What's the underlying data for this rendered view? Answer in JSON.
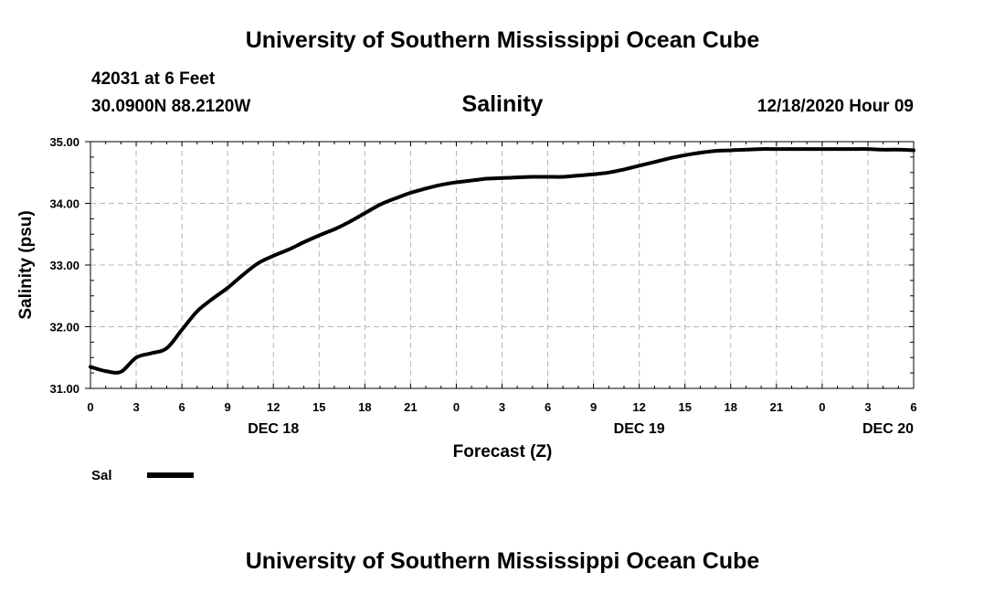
{
  "header": {
    "title": "University of Southern Mississippi Ocean Cube",
    "station": "42031 at 6 Feet",
    "coords": "30.0900N 88.2120W",
    "datetime": "12/18/2020 Hour 09"
  },
  "footer": {
    "title": "University of Southern Mississippi Ocean Cube"
  },
  "chart_data": {
    "type": "line",
    "title": "Salinity",
    "xlabel": "Forecast (Z)",
    "ylabel": "Salinity (psu)",
    "xlim": [
      0,
      54
    ],
    "ylim": [
      31.0,
      35.0
    ],
    "grid": true,
    "xticks": [
      0,
      3,
      6,
      9,
      12,
      15,
      18,
      21,
      24,
      27,
      30,
      33,
      36,
      39,
      42,
      45,
      48,
      51,
      54
    ],
    "xtick_labels": [
      "0",
      "3",
      "6",
      "9",
      "12",
      "15",
      "18",
      "21",
      "0",
      "3",
      "6",
      "9",
      "12",
      "15",
      "18",
      "21",
      "0",
      "3",
      "6"
    ],
    "yticks": [
      31.0,
      32.0,
      33.0,
      34.0,
      35.0
    ],
    "ytick_labels": [
      "31.00",
      "32.00",
      "33.00",
      "34.00",
      "35.00"
    ],
    "date_labels": [
      {
        "hour": 12,
        "label": "DEC 18"
      },
      {
        "hour": 36,
        "label": "DEC 19"
      },
      {
        "hour": 54,
        "label": "DEC 20"
      }
    ],
    "legend": [
      {
        "label": "Sal",
        "color": "#000000"
      }
    ],
    "series": [
      {
        "name": "Sal",
        "color": "#000000",
        "x": [
          0,
          1,
          2,
          3,
          4,
          5,
          6,
          7,
          8,
          9,
          10,
          11,
          12,
          13,
          14,
          15,
          16,
          17,
          18,
          19,
          20,
          21,
          22,
          23,
          24,
          25,
          26,
          27,
          28,
          29,
          30,
          31,
          32,
          33,
          34,
          35,
          36,
          37,
          38,
          39,
          40,
          41,
          42,
          43,
          44,
          45,
          46,
          47,
          48,
          49,
          50,
          51,
          52,
          53,
          54
        ],
        "values": [
          31.35,
          31.28,
          31.27,
          31.5,
          31.57,
          31.65,
          31.95,
          32.25,
          32.45,
          32.63,
          32.84,
          33.03,
          33.15,
          33.25,
          33.37,
          33.48,
          33.58,
          33.7,
          33.84,
          33.98,
          34.08,
          34.17,
          34.24,
          34.3,
          34.34,
          34.37,
          34.4,
          34.41,
          34.42,
          34.43,
          34.43,
          34.43,
          34.45,
          34.47,
          34.5,
          34.55,
          34.61,
          34.67,
          34.73,
          34.78,
          34.82,
          34.85,
          34.86,
          34.87,
          34.88,
          34.88,
          34.88,
          34.88,
          34.88,
          34.88,
          34.88,
          34.88,
          34.87,
          34.87,
          34.86
        ]
      }
    ]
  }
}
